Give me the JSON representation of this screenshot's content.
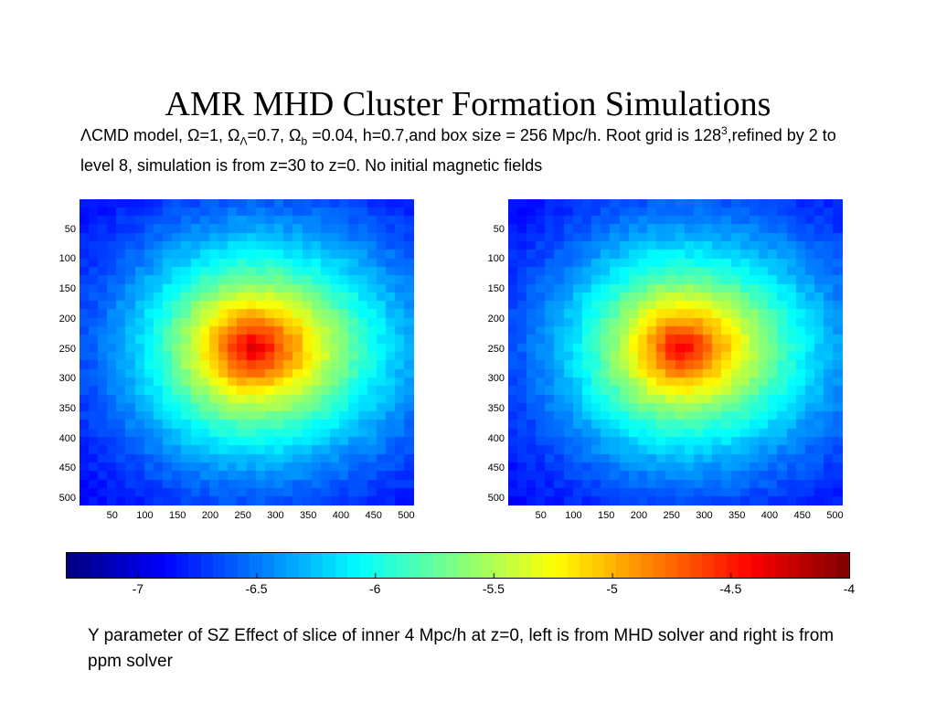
{
  "slide": {
    "title": "AMR MHD Cluster Formation Simulations",
    "subtitle_parts": {
      "p1": "ΛCMD model, Ω=1, Ω",
      "sub1": "Λ",
      "p2": "=0.7, Ω",
      "sub2": "b",
      "p3": " =0.04, h=0.7,and box size = 256 Mpc/h. Root grid is 128",
      "sup1": "3",
      "p4": ",refined by 2 to level 8, simulation is from z=30 to z=0. No initial magnetic fields"
    },
    "caption": "Y parameter of SZ Effect of slice of inner 4 Mpc/h at z=0, left is from MHD solver and right is from ppm solver"
  },
  "chart_data": [
    {
      "type": "heatmap",
      "panel": "left",
      "x_ticks": [
        "50",
        "100",
        "150",
        "200",
        "250",
        "300",
        "350",
        "400",
        "450",
        "500"
      ],
      "y_ticks": [
        "50",
        "100",
        "150",
        "200",
        "250",
        "300",
        "350",
        "400",
        "450",
        "500"
      ],
      "xlim": [
        0,
        512
      ],
      "ylim": [
        0,
        512
      ],
      "peak": {
        "x": 265,
        "y": 250,
        "value": -4.3
      },
      "background_value": -7
    },
    {
      "type": "heatmap",
      "panel": "right",
      "x_ticks": [
        "50",
        "100",
        "150",
        "200",
        "250",
        "300",
        "350",
        "400",
        "450",
        "500"
      ],
      "y_ticks": [
        "50",
        "100",
        "150",
        "200",
        "250",
        "300",
        "350",
        "400",
        "450",
        "500"
      ],
      "xlim": [
        0,
        512
      ],
      "ylim": [
        0,
        512
      ],
      "peak": {
        "x": 265,
        "y": 250,
        "value": -4.4
      },
      "background_value": -7
    },
    {
      "type": "colorbar",
      "range": [
        -7.3,
        -4
      ],
      "tick_values": [
        -7,
        -6.5,
        -6,
        -5.5,
        -5,
        -4.5,
        -4
      ],
      "tick_labels": [
        "-7",
        "-6.5",
        "-6",
        "-5.5",
        "-5",
        "-4.5",
        "-4"
      ],
      "colormap": "jet"
    }
  ]
}
